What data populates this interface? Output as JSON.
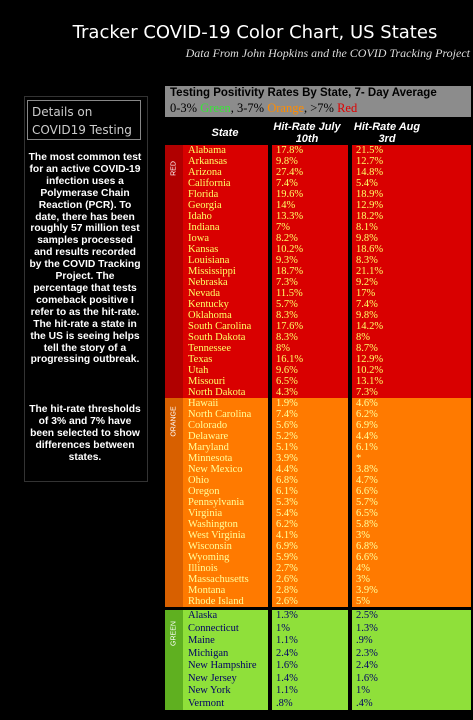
{
  "header": {
    "title": "Tracker COVID-19 Color Chart, US States",
    "subtitle": "Data From John Hopkins and the COVID Tracking Project"
  },
  "sidebar": {
    "title": "Details on COVID19 Testing",
    "paragraphs": [
      "The most common test for an active COVID-19 infection uses a Polymerase Chain Reaction (PCR). To date, there has been roughly 57 million test samples processed and results recorded by the COVID Tracking Project. The percentage that tests comeback positive I refer to as the hit-rate. The hit-rate a state in the US is seeing helps tell the story of a progressing outbreak.",
      "The hit-rate thresholds of 3% and 7% have been selected to show differences between states."
    ]
  },
  "table": {
    "title": "Testing Positivity Rates By State, 7- Day Average",
    "legend": [
      "0-3% ",
      "Green",
      ", 3-7% ",
      "Orange",
      ", >7% ",
      "Red"
    ],
    "columns": [
      "State",
      "Hit-Rate July 10th",
      "Hit-Rate Aug 3rd"
    ],
    "groups": [
      {
        "label": "RED",
        "rows": [
          [
            "Alabama",
            "17.8%",
            "21.5%"
          ],
          [
            "Arkansas",
            "9.8%",
            "12.7%"
          ],
          [
            "Arizona",
            "27.4%",
            "14.8%"
          ],
          [
            "California",
            "7.4%",
            "5.4%"
          ],
          [
            "Florida",
            "19.6%",
            "18.9%"
          ],
          [
            "Georgia",
            "14%",
            "12.9%"
          ],
          [
            "Idaho",
            "13.3%",
            "18.2%"
          ],
          [
            "Indiana",
            "7%",
            "8.1%"
          ],
          [
            "Iowa",
            "8.2%",
            "9.8%"
          ],
          [
            "Kansas",
            "10.2%",
            "18.6%"
          ],
          [
            "Louisiana",
            "9.3%",
            "8.3%"
          ],
          [
            "Mississippi",
            "18.7%",
            "21.1%"
          ],
          [
            "Nebraska",
            "7.3%",
            "9.2%"
          ],
          [
            "Nevada",
            "11.5%",
            "17%"
          ],
          [
            "Kentucky",
            "5.7%",
            "7.4%"
          ],
          [
            "Oklahoma",
            "8.3%",
            "9.8%"
          ],
          [
            "South Carolina",
            "17.6%",
            "14.2%"
          ],
          [
            "South Dakota",
            "8.3%",
            "8%"
          ],
          [
            "Tennessee",
            "8%",
            "8.7%"
          ],
          [
            "Texas",
            "16.1%",
            "12.9%"
          ],
          [
            "Utah",
            "9.6%",
            "10.2%"
          ],
          [
            "Missouri",
            "6.5%",
            "13.1%"
          ],
          [
            "North Dakota",
            "4.3%",
            "7.3%"
          ]
        ]
      },
      {
        "label": "ORANGE",
        "rows": [
          [
            "Hawaii",
            "1.9%",
            "4.6%"
          ],
          [
            "North Carolina",
            "7.4%",
            "6.2%"
          ],
          [
            "Colorado",
            "5.6%",
            "6.9%"
          ],
          [
            "Delaware",
            "5.2%",
            "4.4%"
          ],
          [
            "Maryland",
            "5.1%",
            "6.1%"
          ],
          [
            "Minnesota",
            "3.9%",
            "*"
          ],
          [
            "New Mexico",
            "4.4%",
            "3.8%"
          ],
          [
            "Ohio",
            "6.8%",
            "4.7%"
          ],
          [
            "Oregon",
            "6.1%",
            "6.6%"
          ],
          [
            "Pennsylvania",
            "5.3%",
            "5.7%"
          ],
          [
            "Virginia",
            "5.4%",
            "6.5%"
          ],
          [
            "Washington",
            "6.2%",
            "5.8%"
          ],
          [
            "West Virginia",
            "4.1%",
            "3%"
          ],
          [
            "Wisconsin",
            "6.9%",
            "6.8%"
          ],
          [
            "Wyoming",
            "5.9%",
            "6.6%"
          ],
          [
            "Illinois",
            "2.7%",
            "4%"
          ],
          [
            "Massachusetts",
            "2.6%",
            "3%"
          ],
          [
            "Montana",
            "2.8%",
            "3.9%"
          ],
          [
            "Rhode Island",
            "2.6%",
            "5%"
          ]
        ]
      },
      {
        "label": "GREEN",
        "rows": [
          [
            "Alaska",
            "1.3%",
            "2.5%"
          ],
          [
            "Connecticut",
            "1%",
            "1.3%"
          ],
          [
            "Maine",
            "1.1%",
            ".9%"
          ],
          [
            "Michigan",
            "2.4%",
            "2.3%"
          ],
          [
            "New Hampshire",
            "1.6%",
            "2.4%"
          ],
          [
            "New Jersey",
            "1.4%",
            "1.6%"
          ],
          [
            "New York",
            "1.1%",
            "1%"
          ],
          [
            "Vermont",
            ".8%",
            ".4%"
          ]
        ]
      }
    ]
  }
}
